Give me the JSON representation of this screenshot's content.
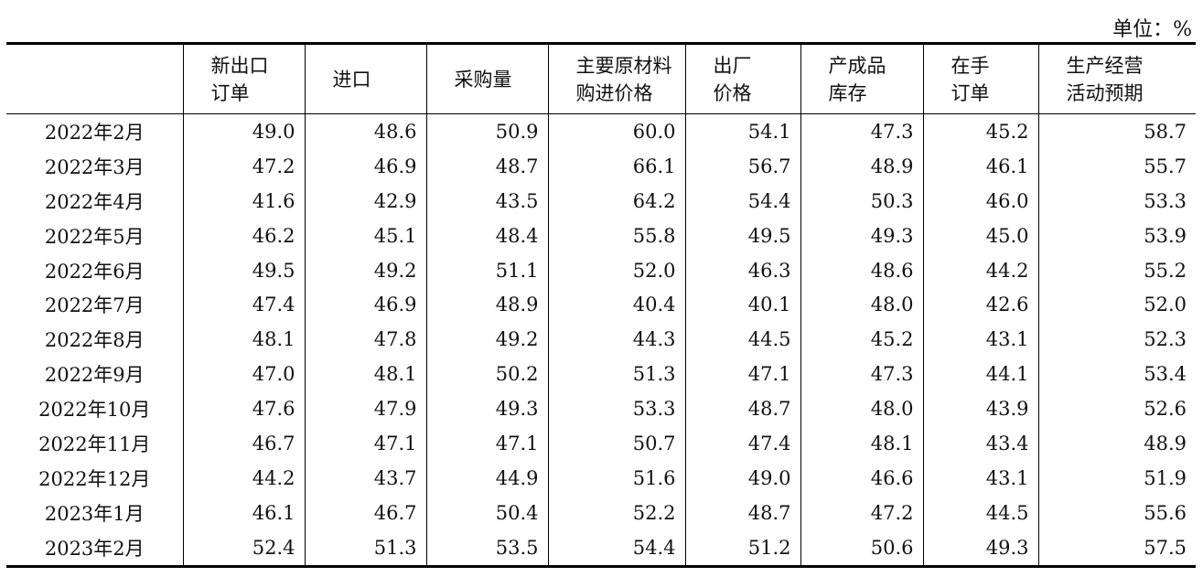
{
  "unit_label": "单位：%",
  "columns": [
    {
      "line1": "",
      "line2": ""
    },
    {
      "line1": "新出口",
      "line2": "订单"
    },
    {
      "line1": "进口",
      "line2": ""
    },
    {
      "line1": "采购量",
      "line2": ""
    },
    {
      "line1": "主要原材料",
      "line2": "购进价格"
    },
    {
      "line1": "出厂",
      "line2": "价格"
    },
    {
      "line1": "产成品",
      "line2": "库存"
    },
    {
      "line1": "在手",
      "line2": "订单"
    },
    {
      "line1": "生产经营",
      "line2": "活动预期"
    }
  ],
  "rows": [
    [
      "2022年2月",
      "49.0",
      "48.6",
      "50.9",
      "60.0",
      "54.1",
      "47.3",
      "45.2",
      "58.7"
    ],
    [
      "2022年3月",
      "47.2",
      "46.9",
      "48.7",
      "66.1",
      "56.7",
      "48.9",
      "46.1",
      "55.7"
    ],
    [
      "2022年4月",
      "41.6",
      "42.9",
      "43.5",
      "64.2",
      "54.4",
      "50.3",
      "46.0",
      "53.3"
    ],
    [
      "2022年5月",
      "46.2",
      "45.1",
      "48.4",
      "55.8",
      "49.5",
      "49.3",
      "45.0",
      "53.9"
    ],
    [
      "2022年6月",
      "49.5",
      "49.2",
      "51.1",
      "52.0",
      "46.3",
      "48.6",
      "44.2",
      "55.2"
    ],
    [
      "2022年7月",
      "47.4",
      "46.9",
      "48.9",
      "40.4",
      "40.1",
      "48.0",
      "42.6",
      "52.0"
    ],
    [
      "2022年8月",
      "48.1",
      "47.8",
      "49.2",
      "44.3",
      "44.5",
      "45.2",
      "43.1",
      "52.3"
    ],
    [
      "2022年9月",
      "47.0",
      "48.1",
      "50.2",
      "51.3",
      "47.1",
      "47.3",
      "44.1",
      "53.4"
    ],
    [
      "2022年10月",
      "47.6",
      "47.9",
      "49.3",
      "53.3",
      "48.7",
      "48.0",
      "43.9",
      "52.6"
    ],
    [
      "2022年11月",
      "46.7",
      "47.1",
      "47.1",
      "50.7",
      "47.4",
      "48.1",
      "43.4",
      "48.9"
    ],
    [
      "2022年12月",
      "44.2",
      "43.7",
      "44.9",
      "51.6",
      "49.0",
      "46.6",
      "43.1",
      "51.9"
    ],
    [
      "2023年1月",
      "46.1",
      "46.7",
      "50.4",
      "52.2",
      "48.7",
      "47.2",
      "44.5",
      "55.6"
    ],
    [
      "2023年2月",
      "52.4",
      "51.3",
      "53.5",
      "54.4",
      "51.2",
      "50.6",
      "49.3",
      "57.5"
    ]
  ]
}
